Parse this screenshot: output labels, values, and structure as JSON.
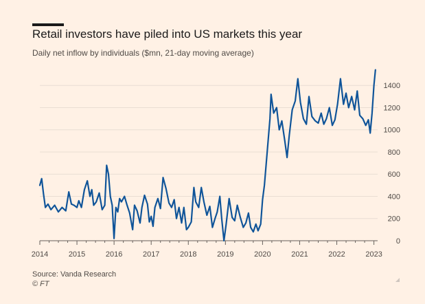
{
  "header": {
    "title": "Retail investors have piled into US markets this year",
    "subtitle": "Daily net inflow by individuals ($mn, 21-day moving average)"
  },
  "footer": {
    "source": "Source: Vanda Research",
    "credit": "© FT"
  },
  "colors": {
    "line": "#0f5499",
    "grid": "#e9ddd3",
    "axis": "#66605c",
    "text": "#4f4a46",
    "background": "#fff1e5"
  },
  "chart_data": {
    "type": "line",
    "title": "Retail investors have piled into US markets this year",
    "subtitle": "Daily net inflow by individuals ($mn, 21-day moving average)",
    "xlabel": "",
    "ylabel": "",
    "xlim": [
      2014.0,
      2023.1
    ],
    "ylim": [
      0,
      1550
    ],
    "y_ticks": [
      0,
      200,
      400,
      600,
      800,
      1000,
      1200,
      1400
    ],
    "x_ticks": [
      "2014",
      "2015",
      "2016",
      "2017",
      "2018",
      "2019",
      "2020",
      "2021",
      "2022",
      "2023"
    ],
    "grid": true,
    "legend": "none",
    "series": [
      {
        "name": "Daily net inflow by individuals",
        "points": [
          [
            2014.0,
            500
          ],
          [
            2014.05,
            560
          ],
          [
            2014.1,
            420
          ],
          [
            2014.15,
            300
          ],
          [
            2014.22,
            330
          ],
          [
            2014.3,
            280
          ],
          [
            2014.4,
            320
          ],
          [
            2014.5,
            260
          ],
          [
            2014.6,
            300
          ],
          [
            2014.7,
            270
          ],
          [
            2014.78,
            440
          ],
          [
            2014.85,
            330
          ],
          [
            2014.92,
            320
          ],
          [
            2015.0,
            300
          ],
          [
            2015.05,
            360
          ],
          [
            2015.12,
            300
          ],
          [
            2015.2,
            460
          ],
          [
            2015.28,
            540
          ],
          [
            2015.35,
            400
          ],
          [
            2015.4,
            460
          ],
          [
            2015.45,
            320
          ],
          [
            2015.52,
            350
          ],
          [
            2015.6,
            430
          ],
          [
            2015.68,
            280
          ],
          [
            2015.75,
            320
          ],
          [
            2015.8,
            680
          ],
          [
            2015.85,
            600
          ],
          [
            2015.9,
            400
          ],
          [
            2015.95,
            320
          ],
          [
            2016.0,
            20
          ],
          [
            2016.05,
            300
          ],
          [
            2016.1,
            260
          ],
          [
            2016.15,
            380
          ],
          [
            2016.2,
            350
          ],
          [
            2016.28,
            400
          ],
          [
            2016.35,
            320
          ],
          [
            2016.42,
            250
          ],
          [
            2016.5,
            100
          ],
          [
            2016.55,
            320
          ],
          [
            2016.62,
            270
          ],
          [
            2016.7,
            160
          ],
          [
            2016.75,
            300
          ],
          [
            2016.82,
            410
          ],
          [
            2016.9,
            330
          ],
          [
            2016.95,
            170
          ],
          [
            2017.0,
            220
          ],
          [
            2017.05,
            130
          ],
          [
            2017.1,
            300
          ],
          [
            2017.18,
            380
          ],
          [
            2017.25,
            290
          ],
          [
            2017.32,
            570
          ],
          [
            2017.4,
            470
          ],
          [
            2017.48,
            340
          ],
          [
            2017.55,
            300
          ],
          [
            2017.62,
            370
          ],
          [
            2017.68,
            200
          ],
          [
            2017.75,
            300
          ],
          [
            2017.82,
            160
          ],
          [
            2017.88,
            300
          ],
          [
            2017.95,
            100
          ],
          [
            2018.0,
            120
          ],
          [
            2018.08,
            170
          ],
          [
            2018.15,
            480
          ],
          [
            2018.2,
            350
          ],
          [
            2018.28,
            300
          ],
          [
            2018.35,
            480
          ],
          [
            2018.42,
            350
          ],
          [
            2018.5,
            230
          ],
          [
            2018.58,
            310
          ],
          [
            2018.65,
            120
          ],
          [
            2018.72,
            200
          ],
          [
            2018.78,
            260
          ],
          [
            2018.85,
            400
          ],
          [
            2018.9,
            200
          ],
          [
            2018.96,
            0
          ],
          [
            2019.02,
            150
          ],
          [
            2019.1,
            380
          ],
          [
            2019.18,
            210
          ],
          [
            2019.25,
            180
          ],
          [
            2019.32,
            320
          ],
          [
            2019.4,
            210
          ],
          [
            2019.48,
            120
          ],
          [
            2019.55,
            160
          ],
          [
            2019.62,
            250
          ],
          [
            2019.68,
            120
          ],
          [
            2019.75,
            80
          ],
          [
            2019.82,
            150
          ],
          [
            2019.88,
            90
          ],
          [
            2019.95,
            150
          ],
          [
            2020.0,
            370
          ],
          [
            2020.05,
            500
          ],
          [
            2020.1,
            700
          ],
          [
            2020.15,
            900
          ],
          [
            2020.2,
            1100
          ],
          [
            2020.23,
            1320
          ],
          [
            2020.3,
            1150
          ],
          [
            2020.38,
            1200
          ],
          [
            2020.45,
            1000
          ],
          [
            2020.52,
            1080
          ],
          [
            2020.6,
            900
          ],
          [
            2020.66,
            750
          ],
          [
            2020.72,
            950
          ],
          [
            2020.8,
            1180
          ],
          [
            2020.88,
            1260
          ],
          [
            2020.95,
            1460
          ],
          [
            2021.02,
            1250
          ],
          [
            2021.1,
            1100
          ],
          [
            2021.18,
            1050
          ],
          [
            2021.25,
            1300
          ],
          [
            2021.33,
            1120
          ],
          [
            2021.42,
            1080
          ],
          [
            2021.5,
            1060
          ],
          [
            2021.58,
            1150
          ],
          [
            2021.65,
            1050
          ],
          [
            2021.72,
            1100
          ],
          [
            2021.8,
            1200
          ],
          [
            2021.88,
            1040
          ],
          [
            2021.95,
            1090
          ],
          [
            2022.02,
            1230
          ],
          [
            2022.1,
            1460
          ],
          [
            2022.18,
            1230
          ],
          [
            2022.25,
            1330
          ],
          [
            2022.32,
            1200
          ],
          [
            2022.4,
            1300
          ],
          [
            2022.48,
            1180
          ],
          [
            2022.55,
            1350
          ],
          [
            2022.62,
            1130
          ],
          [
            2022.7,
            1100
          ],
          [
            2022.78,
            1040
          ],
          [
            2022.85,
            1090
          ],
          [
            2022.9,
            970
          ],
          [
            2022.95,
            1150
          ],
          [
            2023.0,
            1400
          ],
          [
            2023.04,
            1540
          ]
        ]
      }
    ]
  }
}
